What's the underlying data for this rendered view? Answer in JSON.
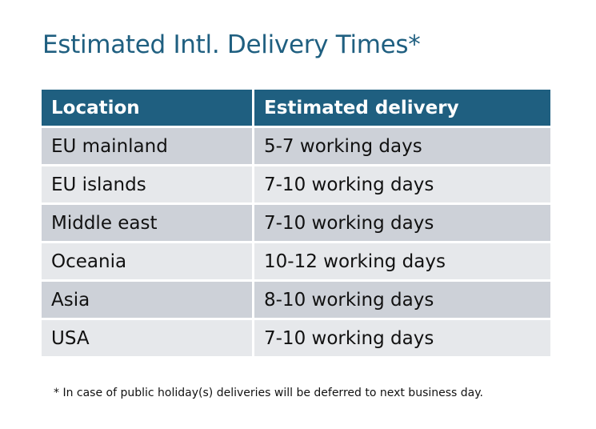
{
  "title": "Estimated Intl. Delivery Times*",
  "table": {
    "headers": [
      "Location",
      "Estimated delivery"
    ],
    "rows": [
      [
        "EU mainland",
        "5-7 working days"
      ],
      [
        "EU islands",
        "7-10 working days"
      ],
      [
        "Middle east",
        "7-10 working days"
      ],
      [
        "Oceania",
        "10-12 working days"
      ],
      [
        "Asia",
        "8-10 working days"
      ],
      [
        "USA",
        "7-10 working days"
      ]
    ]
  },
  "footnote": "* In case of public holiday(s) deliveries will be deferred to next business day.",
  "colors": {
    "header": "#1f5f80",
    "row_dark": "#cdd1d8",
    "row_light": "#e6e8eb"
  }
}
